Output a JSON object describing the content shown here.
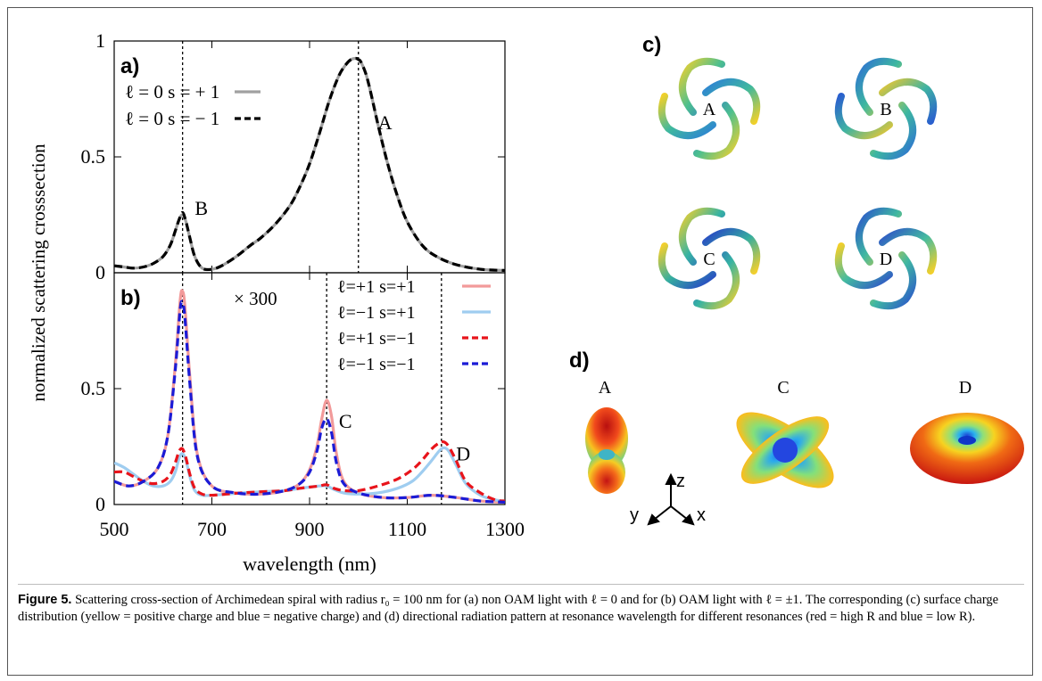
{
  "figure": {
    "caption_label": "Figure 5.",
    "caption_text": "Scattering cross-section of Archimedean spiral with radius r₀ = 100 nm for (a) non OAM light with ℓ = 0 and for (b) OAM light with ℓ = ±1. The corresponding (c) surface charge distribution (yellow = positive charge and blue = negative charge) and (d) directional radiation pattern at resonance wavelength for different resonances (red = high R and blue = low R).",
    "ylabel": "normalized scattering crosssection",
    "xlabel": "wavelength (nm)",
    "panel_labels": {
      "a": "a)",
      "b": "b)",
      "c": "c)",
      "d": "d)"
    },
    "multiplier_text": "× 300",
    "spiral_labels": [
      "A",
      "B",
      "C",
      "D"
    ],
    "pattern_labels": [
      "A",
      "C",
      "D"
    ],
    "axes_triad": {
      "z": "z",
      "y": "y",
      "x": "x"
    }
  },
  "colors": {
    "gray": "#a0a0a0",
    "black": "#000000",
    "pink": "#f29a9a",
    "lightblue": "#9fcdf0",
    "red": "#e8141b",
    "blue": "#1b1bd6"
  },
  "chart_data": [
    {
      "type": "line",
      "panel": "a)",
      "xlim": [
        500,
        1300
      ],
      "ylim": [
        0,
        1
      ],
      "xticks": [
        500,
        700,
        900,
        1100,
        1300
      ],
      "yticks": [
        0,
        0.5,
        1
      ],
      "ytick_labels": [
        "0",
        "0.5",
        "1"
      ],
      "vlines": [
        640,
        1000
      ],
      "annotations": [
        {
          "text": "A",
          "x": 1040,
          "y": 0.62
        },
        {
          "text": "B",
          "x": 665,
          "y": 0.25
        }
      ],
      "series": [
        {
          "name": "ℓ = 0 s = + 1",
          "color": "#a0a0a0",
          "style": "solid",
          "x": [
            500,
            520,
            540,
            560,
            580,
            600,
            615,
            625,
            633,
            640,
            647,
            655,
            665,
            680,
            700,
            720,
            750,
            780,
            800,
            830,
            860,
            880,
            900,
            920,
            940,
            960,
            975,
            985,
            995,
            1000,
            1005,
            1015,
            1025,
            1040,
            1060,
            1080,
            1100,
            1130,
            1160,
            1200,
            1250,
            1300
          ],
          "y": [
            0.03,
            0.025,
            0.02,
            0.025,
            0.04,
            0.07,
            0.12,
            0.18,
            0.23,
            0.25,
            0.22,
            0.15,
            0.07,
            0.02,
            0.015,
            0.03,
            0.07,
            0.12,
            0.15,
            0.21,
            0.29,
            0.37,
            0.47,
            0.6,
            0.74,
            0.85,
            0.9,
            0.92,
            0.925,
            0.92,
            0.91,
            0.86,
            0.78,
            0.64,
            0.47,
            0.33,
            0.22,
            0.12,
            0.07,
            0.035,
            0.015,
            0.01
          ]
        },
        {
          "name": "ℓ = 0 s = − 1",
          "color": "#000000",
          "style": "dashed",
          "x": [
            500,
            520,
            540,
            560,
            580,
            600,
            615,
            625,
            633,
            640,
            647,
            655,
            665,
            680,
            700,
            720,
            750,
            780,
            800,
            830,
            860,
            880,
            900,
            920,
            940,
            960,
            975,
            985,
            995,
            1000,
            1005,
            1015,
            1025,
            1040,
            1060,
            1080,
            1100,
            1130,
            1160,
            1200,
            1250,
            1300
          ],
          "y": [
            0.03,
            0.025,
            0.02,
            0.025,
            0.04,
            0.07,
            0.12,
            0.18,
            0.23,
            0.26,
            0.22,
            0.15,
            0.07,
            0.02,
            0.015,
            0.03,
            0.07,
            0.12,
            0.15,
            0.21,
            0.29,
            0.37,
            0.47,
            0.6,
            0.74,
            0.85,
            0.9,
            0.92,
            0.925,
            0.92,
            0.91,
            0.86,
            0.78,
            0.64,
            0.47,
            0.33,
            0.22,
            0.12,
            0.07,
            0.035,
            0.015,
            0.01
          ]
        }
      ]
    },
    {
      "type": "line",
      "panel": "b)",
      "xlim": [
        500,
        1300
      ],
      "ylim": [
        0,
        1
      ],
      "xticks": [
        500,
        700,
        900,
        1100,
        1300
      ],
      "yticks": [
        0,
        0.5
      ],
      "ytick_labels": [
        "0",
        "0.5"
      ],
      "xtick_labels": [
        "500",
        "700",
        "900",
        "1100",
        "1300"
      ],
      "vlines": [
        640,
        935,
        1170
      ],
      "annotations": [
        {
          "text": "C",
          "x": 960,
          "y": 0.33
        },
        {
          "text": "D",
          "x": 1200,
          "y": 0.19
        }
      ],
      "series": [
        {
          "name": "ℓ=+1  s=+1",
          "color": "#f29a9a",
          "style": "solid",
          "x": [
            500,
            530,
            560,
            590,
            610,
            625,
            635,
            640,
            645,
            655,
            670,
            700,
            750,
            800,
            850,
            880,
            900,
            915,
            925,
            935,
            945,
            955,
            970,
            1000,
            1050,
            1100,
            1150,
            1200,
            1250,
            1300
          ],
          "y": [
            0.1,
            0.08,
            0.1,
            0.16,
            0.3,
            0.6,
            0.88,
            0.92,
            0.85,
            0.55,
            0.22,
            0.08,
            0.05,
            0.045,
            0.06,
            0.09,
            0.15,
            0.25,
            0.37,
            0.45,
            0.38,
            0.22,
            0.1,
            0.05,
            0.03,
            0.03,
            0.04,
            0.03,
            0.015,
            0.01
          ]
        },
        {
          "name": "ℓ=−1  s=+1",
          "color": "#9fcdf0",
          "style": "solid",
          "x": [
            500,
            520,
            540,
            560,
            580,
            600,
            615,
            625,
            633,
            640,
            647,
            655,
            665,
            680,
            700,
            730,
            760,
            800,
            850,
            880,
            900,
            920,
            935,
            950,
            970,
            1000,
            1040,
            1080,
            1110,
            1130,
            1150,
            1165,
            1175,
            1185,
            1200,
            1220,
            1250,
            1280,
            1300
          ],
          "y": [
            0.18,
            0.16,
            0.13,
            0.1,
            0.08,
            0.08,
            0.1,
            0.14,
            0.2,
            0.22,
            0.19,
            0.12,
            0.06,
            0.04,
            0.04,
            0.045,
            0.05,
            0.055,
            0.06,
            0.07,
            0.075,
            0.08,
            0.08,
            0.065,
            0.05,
            0.045,
            0.05,
            0.07,
            0.1,
            0.14,
            0.19,
            0.23,
            0.245,
            0.23,
            0.17,
            0.09,
            0.04,
            0.02,
            0.015
          ]
        },
        {
          "name": "ℓ=+1  s=−1",
          "color": "#e8141b",
          "style": "dashed",
          "x": [
            500,
            520,
            540,
            560,
            580,
            600,
            615,
            625,
            633,
            640,
            647,
            655,
            665,
            680,
            700,
            730,
            760,
            800,
            850,
            880,
            900,
            920,
            935,
            950,
            970,
            1000,
            1040,
            1080,
            1110,
            1130,
            1150,
            1165,
            1175,
            1185,
            1200,
            1220,
            1250,
            1280,
            1300
          ],
          "y": [
            0.14,
            0.14,
            0.12,
            0.1,
            0.09,
            0.1,
            0.13,
            0.18,
            0.23,
            0.24,
            0.2,
            0.13,
            0.07,
            0.045,
            0.04,
            0.045,
            0.05,
            0.055,
            0.06,
            0.07,
            0.075,
            0.08,
            0.085,
            0.07,
            0.06,
            0.06,
            0.08,
            0.11,
            0.15,
            0.19,
            0.24,
            0.265,
            0.27,
            0.25,
            0.19,
            0.1,
            0.05,
            0.02,
            0.015
          ]
        },
        {
          "name": "ℓ=−1  s=−1",
          "color": "#1b1bd6",
          "style": "dashed",
          "x": [
            500,
            530,
            560,
            590,
            610,
            625,
            635,
            640,
            645,
            655,
            670,
            700,
            750,
            800,
            850,
            880,
            900,
            915,
            925,
            935,
            945,
            955,
            970,
            1000,
            1050,
            1100,
            1150,
            1200,
            1250,
            1300
          ],
          "y": [
            0.1,
            0.08,
            0.1,
            0.16,
            0.3,
            0.58,
            0.84,
            0.87,
            0.8,
            0.52,
            0.21,
            0.08,
            0.05,
            0.045,
            0.06,
            0.09,
            0.14,
            0.23,
            0.33,
            0.37,
            0.31,
            0.18,
            0.09,
            0.05,
            0.03,
            0.03,
            0.04,
            0.03,
            0.015,
            0.01
          ]
        }
      ]
    }
  ]
}
